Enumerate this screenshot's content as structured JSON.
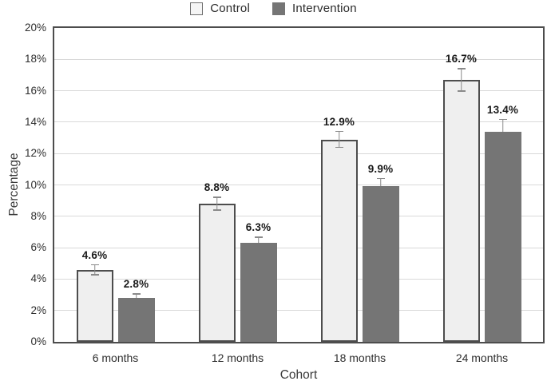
{
  "chart_data": {
    "type": "bar",
    "title": "",
    "xlabel": "Cohort",
    "ylabel": "Percentage",
    "categories": [
      "6 months",
      "12 months",
      "18 months",
      "24 months"
    ],
    "series": [
      {
        "name": "Control",
        "fill": "#efefef",
        "border": "#4d4d4d",
        "values": [
          4.6,
          8.8,
          12.9,
          16.7
        ],
        "errors": [
          0.35,
          0.45,
          0.55,
          0.75
        ],
        "value_labels": [
          "4.6%",
          "8.8%",
          "12.9%",
          "16.7%"
        ],
        "whisker": "both"
      },
      {
        "name": "Intervention",
        "fill": "#757575",
        "border": "#757575",
        "values": [
          2.8,
          6.3,
          9.9,
          13.4
        ],
        "errors": [
          0.3,
          0.4,
          0.55,
          0.8
        ],
        "value_labels": [
          "2.8%",
          "6.3%",
          "9.9%",
          "13.4%"
        ],
        "whisker": "upper"
      }
    ],
    "ylim": [
      0,
      20
    ],
    "ytick_step": 2,
    "ytick_labels": [
      "0%",
      "2%",
      "4%",
      "6%",
      "8%",
      "10%",
      "12%",
      "14%",
      "16%",
      "18%",
      "20%"
    ],
    "grid": true,
    "legend_position": "top"
  },
  "legend": {
    "items": [
      {
        "label": "Control",
        "fill": "#f5f5f5",
        "border": "#6e6e6e"
      },
      {
        "label": "Intervention",
        "fill": "#757575",
        "border": "#757575"
      }
    ]
  },
  "colors": {
    "grid": "#d9d9d9",
    "axis": "#4d4d4d",
    "error_bar": "#8a8a8a",
    "value_label": "#1a1a1a",
    "tick_label": "#2e2e2e"
  }
}
